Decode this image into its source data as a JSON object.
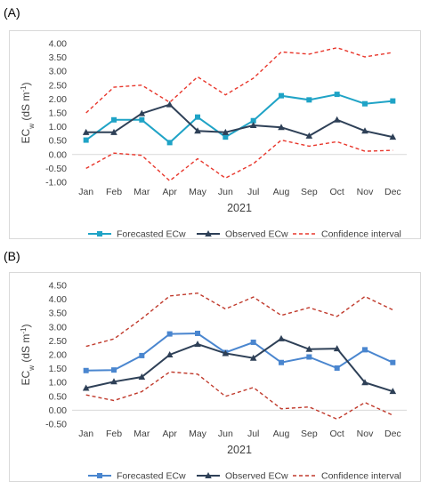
{
  "panels": [
    {
      "label": "(A)",
      "chart_data": {
        "type": "line",
        "categories": [
          "Jan",
          "Feb",
          "Mar",
          "Apr",
          "May",
          "Jun",
          "Jul",
          "Aug",
          "Sep",
          "Oct",
          "Nov",
          "Dec"
        ],
        "xlabel": "2021",
        "ylabel_main": "EC",
        "ylabel_sub": "w",
        "ylabel_unit": "(dS m",
        "ylabel_sup": "-1",
        "ylabel_close": ")",
        "ylim": [
          -1.0,
          4.0
        ],
        "yticks": [
          "-1.00",
          "-0.50",
          "0.00",
          "0.50",
          "1.00",
          "1.50",
          "2.00",
          "2.50",
          "3.00",
          "3.50",
          "4.00"
        ],
        "grid": false,
        "legend_position": "bottom",
        "series": [
          {
            "name": "Forecasted ECw",
            "color": "#1fa3c6",
            "marker": "square",
            "dash": "solid",
            "values": [
              0.52,
              1.25,
              1.25,
              0.43,
              1.35,
              0.63,
              1.22,
              2.12,
              1.97,
              2.17,
              1.83,
              1.93
            ]
          },
          {
            "name": "Observed ECw",
            "color": "#2e4057",
            "marker": "triangle",
            "dash": "solid",
            "values": [
              0.8,
              0.8,
              1.48,
              1.8,
              0.85,
              0.8,
              1.05,
              0.98,
              0.67,
              1.25,
              0.85,
              0.63
            ]
          },
          {
            "name": "Confidence interval",
            "color": "#e8362b",
            "marker": "none",
            "dash": "dashed",
            "upper": [
              1.5,
              2.43,
              2.5,
              1.88,
              2.8,
              2.15,
              2.75,
              3.7,
              3.62,
              3.85,
              3.52,
              3.68
            ],
            "lower": [
              -0.5,
              0.05,
              -0.03,
              -0.95,
              -0.15,
              -0.85,
              -0.33,
              0.52,
              0.3,
              0.46,
              0.12,
              0.15
            ]
          }
        ]
      }
    },
    {
      "label": "(B)",
      "chart_data": {
        "type": "line",
        "categories": [
          "Jan",
          "Feb",
          "Mar",
          "Apr",
          "May",
          "Jun",
          "Jul",
          "Aug",
          "Sep",
          "Oct",
          "Nov",
          "Dec"
        ],
        "xlabel": "2021",
        "ylabel_main": "EC",
        "ylabel_sub": "w",
        "ylabel_unit": "(dS m",
        "ylabel_sup": "-1",
        "ylabel_close": ")",
        "ylim": [
          -0.5,
          4.5
        ],
        "yticks": [
          "-0.50",
          "0.00",
          "0.50",
          "1.00",
          "1.50",
          "2.00",
          "2.50",
          "3.00",
          "3.50",
          "4.00",
          "4.50"
        ],
        "grid": false,
        "legend_position": "bottom",
        "series": [
          {
            "name": "Forecasted ECw",
            "color": "#4a86cf",
            "marker": "square",
            "dash": "solid",
            "values": [
              1.43,
              1.45,
              1.97,
              2.75,
              2.77,
              2.08,
              2.45,
              1.72,
              1.92,
              1.52,
              2.18,
              1.72
            ]
          },
          {
            "name": "Observed ECw",
            "color": "#2e4057",
            "marker": "triangle",
            "dash": "solid",
            "values": [
              0.8,
              1.03,
              1.2,
              2.0,
              2.38,
              2.05,
              1.88,
              2.58,
              2.2,
              2.22,
              1.0,
              0.68
            ]
          },
          {
            "name": "Confidence interval",
            "color": "#c0392b",
            "marker": "none",
            "dash": "dashed",
            "upper": [
              2.3,
              2.57,
              3.3,
              4.12,
              4.22,
              3.65,
              4.08,
              3.42,
              3.7,
              3.38,
              4.1,
              3.62
            ],
            "lower": [
              0.55,
              0.35,
              0.67,
              1.38,
              1.3,
              0.5,
              0.82,
              0.05,
              0.12,
              -0.32,
              0.28,
              -0.18
            ]
          }
        ]
      }
    }
  ]
}
